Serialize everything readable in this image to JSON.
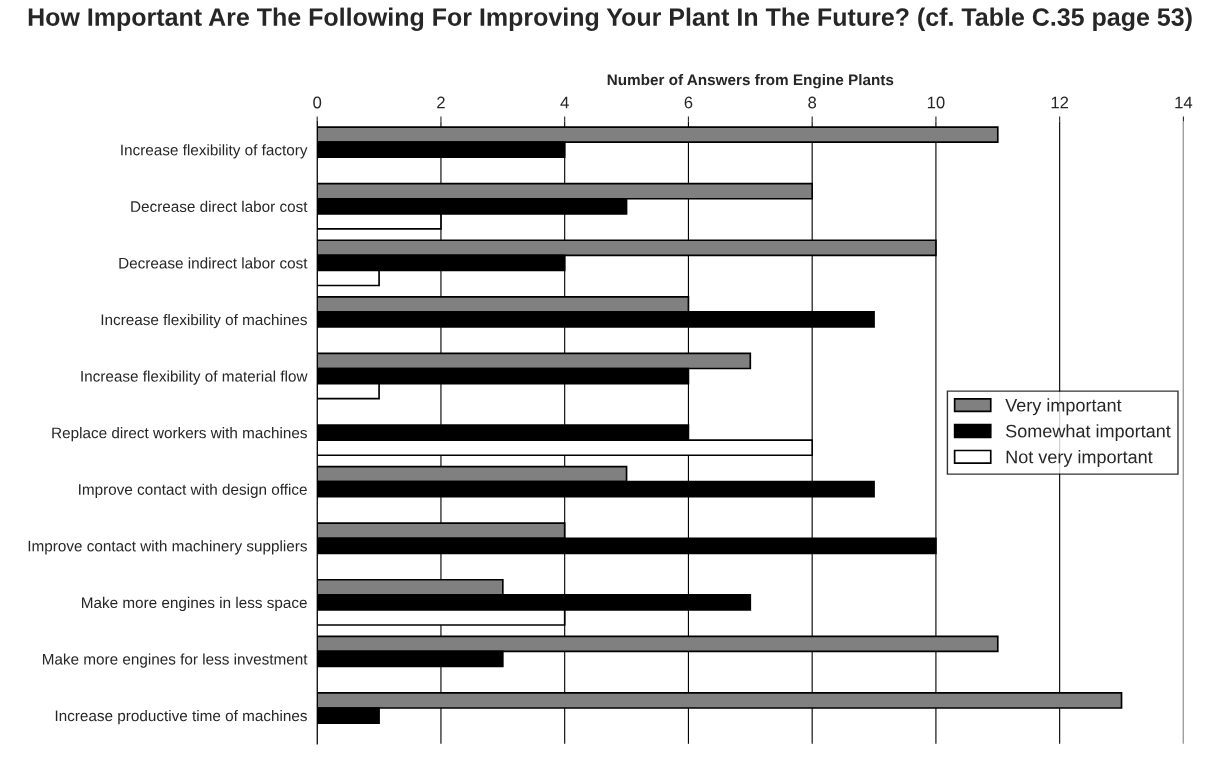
{
  "chart_data": {
    "type": "bar",
    "orientation": "horizontal",
    "title": "How Important Are The Following For Improving Your Plant In The Future? (cf. Table C.35 page 53)",
    "xlabel": "Number of Answers from Engine Plants",
    "categories": [
      "Increase flexibility of factory",
      "Decrease direct labor cost",
      "Decrease indirect labor cost",
      "Increase flexibility of machines",
      "Increase flexibility of material flow",
      "Replace direct workers with machines",
      "Improve contact with design office",
      "Improve contact with machinery suppliers",
      "Make more engines in less space",
      "Make more engines for less investment",
      "Increase productive time of machines"
    ],
    "series": [
      {
        "name": "Very important",
        "color": "#808080",
        "values": [
          11,
          8,
          10,
          6,
          7,
          null,
          5,
          4,
          3,
          11,
          13
        ]
      },
      {
        "name": "Somewhat important",
        "color": "#000000",
        "values": [
          4,
          5,
          4,
          9,
          6,
          6,
          9,
          10,
          7,
          3,
          1
        ]
      },
      {
        "name": "Not very important",
        "color": "#ffffff",
        "values": [
          null,
          2,
          1,
          null,
          1,
          8,
          null,
          null,
          4,
          null,
          null
        ]
      }
    ],
    "xlim": [
      0,
      14
    ],
    "xticks": [
      0,
      2,
      4,
      6,
      8,
      10,
      12,
      14
    ],
    "grid": "x",
    "legend": "right"
  }
}
